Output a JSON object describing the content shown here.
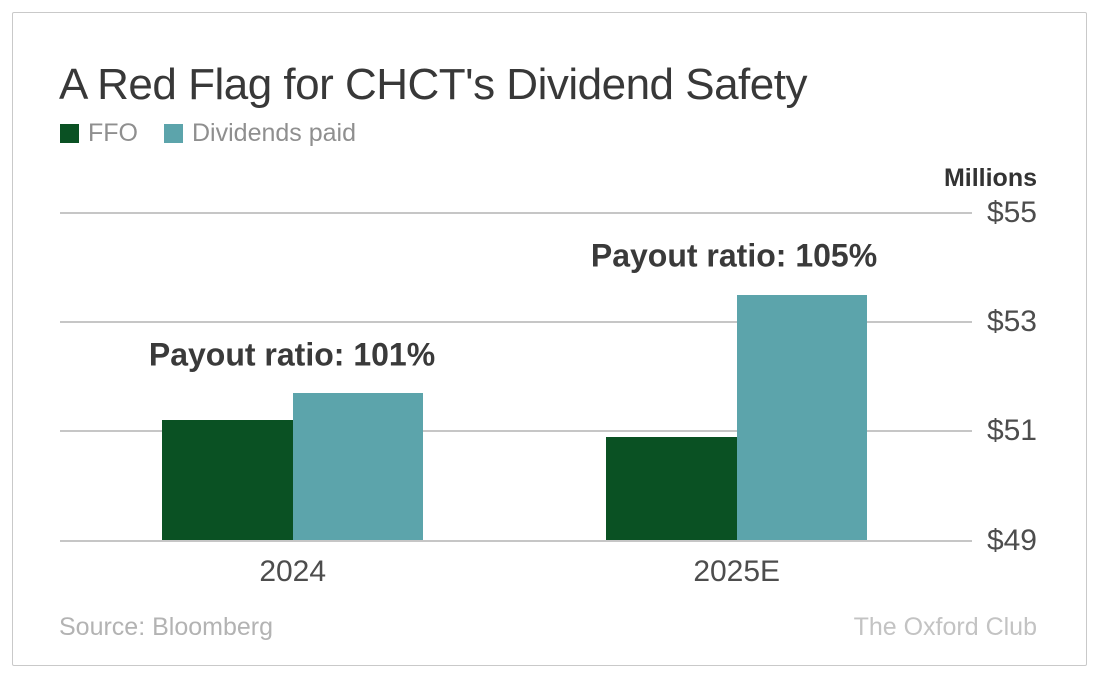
{
  "header": {
    "title": "A Red Flag for CHCT's Dividend Safety"
  },
  "axis": {
    "unit_label": "Millions"
  },
  "footer": {
    "source": "Source: Bloomberg",
    "brand": "The Oxford Club"
  },
  "colors": {
    "ffo_green": "#0A5123",
    "dividends_teal": "#5CA4AB",
    "gridline": "#C6C6C6",
    "title_text": "#383838",
    "axis_text": "#4D4D4D",
    "annotation_text": "#3A3A3A",
    "legend_text": "#8F8F8F",
    "source_text": "#B3B3B3",
    "brand_text": "#C3C3C3",
    "frame_border": "#C9C9C9",
    "background": "#FFFFFF"
  },
  "chart_data": {
    "type": "bar",
    "title": "A Red Flag for CHCT's Dividend Safety",
    "ylabel": "Millions",
    "units": "USD millions",
    "categories": [
      "2024",
      "2025E"
    ],
    "series": [
      {
        "name": "FFO",
        "color": "#0A5123",
        "values": [
          51.2,
          50.9
        ]
      },
      {
        "name": "Dividends paid",
        "color": "#5CA4AB",
        "values": [
          51.7,
          53.5
        ]
      }
    ],
    "annotations": [
      {
        "text": "Payout ratio: 101%",
        "category_index": 0
      },
      {
        "text": "Payout ratio: 105%",
        "category_index": 1
      }
    ],
    "y_ticks": [
      {
        "value": 55,
        "label": "$55"
      },
      {
        "value": 53,
        "label": "$53"
      },
      {
        "value": 51,
        "label": "$51"
      },
      {
        "value": 49,
        "label": "$49"
      }
    ],
    "ylim": [
      49,
      55
    ],
    "grid": true,
    "legend_position": "top-left"
  }
}
